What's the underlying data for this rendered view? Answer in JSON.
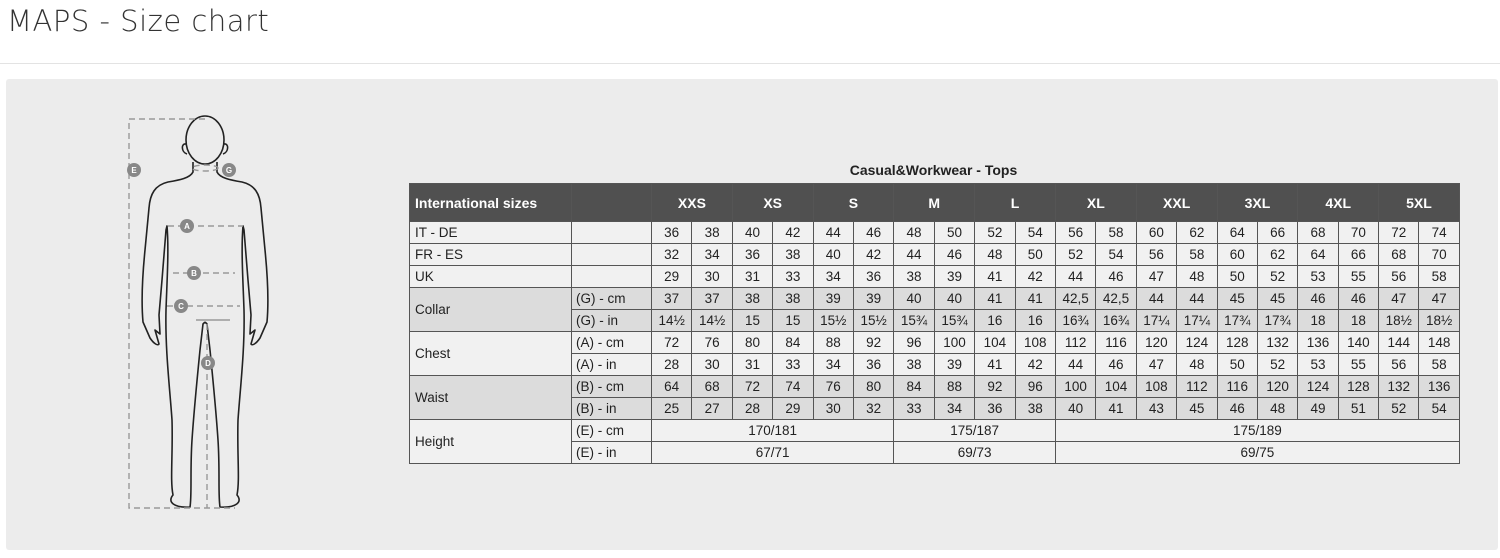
{
  "page_title": "MAPS - Size chart",
  "figure": {
    "labels": {
      "A": "A",
      "B": "B",
      "C": "C",
      "D": "D",
      "E": "E",
      "G": "G"
    }
  },
  "colors": {
    "header_bg": "#505050",
    "shaded_row": "#dcdcdc",
    "row": "#f1f1f1",
    "panel": "#ececec"
  },
  "chart": {
    "caption": "Casual&Workwear - Tops",
    "header_label": "International sizes",
    "sizes": [
      "XXS",
      "XS",
      "S",
      "M",
      "L",
      "XL",
      "XXL",
      "3XL",
      "4XL",
      "5XL"
    ],
    "groups": [
      {
        "label": "IT - DE",
        "shade": false,
        "rows": [
          {
            "sub": "",
            "values": [
              "36",
              "38",
              "40",
              "42",
              "44",
              "46",
              "48",
              "50",
              "52",
              "54",
              "56",
              "58",
              "60",
              "62",
              "64",
              "66",
              "68",
              "70",
              "72",
              "74"
            ]
          }
        ]
      },
      {
        "label": "FR - ES",
        "shade": false,
        "rows": [
          {
            "sub": "",
            "values": [
              "32",
              "34",
              "36",
              "38",
              "40",
              "42",
              "44",
              "46",
              "48",
              "50",
              "52",
              "54",
              "56",
              "58",
              "60",
              "62",
              "64",
              "66",
              "68",
              "70"
            ]
          }
        ]
      },
      {
        "label": "UK",
        "shade": false,
        "rows": [
          {
            "sub": "",
            "values": [
              "29",
              "30",
              "31",
              "33",
              "34",
              "36",
              "38",
              "39",
              "41",
              "42",
              "44",
              "46",
              "47",
              "48",
              "50",
              "52",
              "53",
              "55",
              "56",
              "58"
            ]
          }
        ]
      },
      {
        "label": "Collar",
        "shade": true,
        "rows": [
          {
            "sub": "(G) - cm",
            "values": [
              "37",
              "37",
              "38",
              "38",
              "39",
              "39",
              "40",
              "40",
              "41",
              "41",
              "42,5",
              "42,5",
              "44",
              "44",
              "45",
              "45",
              "46",
              "46",
              "47",
              "47"
            ]
          },
          {
            "sub": "(G)  - in",
            "values": [
              "14½",
              "14½",
              "15",
              "15",
              "15½",
              "15½",
              "15¾",
              "15¾",
              "16",
              "16",
              "16¾",
              "16¾",
              "17¼",
              "17¼",
              "17¾",
              "17¾",
              "18",
              "18",
              "18½",
              "18½"
            ]
          }
        ]
      },
      {
        "label": "Chest",
        "shade": false,
        "rows": [
          {
            "sub": "(A) - cm",
            "values": [
              "72",
              "76",
              "80",
              "84",
              "88",
              "92",
              "96",
              "100",
              "104",
              "108",
              "112",
              "116",
              "120",
              "124",
              "128",
              "132",
              "136",
              "140",
              "144",
              "148"
            ]
          },
          {
            "sub": "(A) - in",
            "values": [
              "28",
              "30",
              "31",
              "33",
              "34",
              "36",
              "38",
              "39",
              "41",
              "42",
              "44",
              "46",
              "47",
              "48",
              "50",
              "52",
              "53",
              "55",
              "56",
              "58"
            ]
          }
        ]
      },
      {
        "label": "Waist",
        "shade": true,
        "rows": [
          {
            "sub": "(B) - cm",
            "values": [
              "64",
              "68",
              "72",
              "74",
              "76",
              "80",
              "84",
              "88",
              "92",
              "96",
              "100",
              "104",
              "108",
              "112",
              "116",
              "120",
              "124",
              "128",
              "132",
              "136"
            ]
          },
          {
            "sub": "(B) - in",
            "values": [
              "25",
              "27",
              "28",
              "29",
              "30",
              "32",
              "33",
              "34",
              "36",
              "38",
              "40",
              "41",
              "43",
              "45",
              "46",
              "48",
              "49",
              "51",
              "52",
              "54"
            ]
          }
        ]
      },
      {
        "label": "Height",
        "shade": false,
        "rows": [
          {
            "sub": "(E) - cm",
            "spans": [
              {
                "text": "170/181",
                "span": 6
              },
              {
                "text": "175/187",
                "span": 4
              },
              {
                "text": "175/189",
                "span": 10
              }
            ]
          },
          {
            "sub": "(E) - in",
            "spans": [
              {
                "text": "67/71",
                "span": 6
              },
              {
                "text": "69/73",
                "span": 4
              },
              {
                "text": "69/75",
                "span": 10
              }
            ]
          }
        ]
      }
    ]
  }
}
